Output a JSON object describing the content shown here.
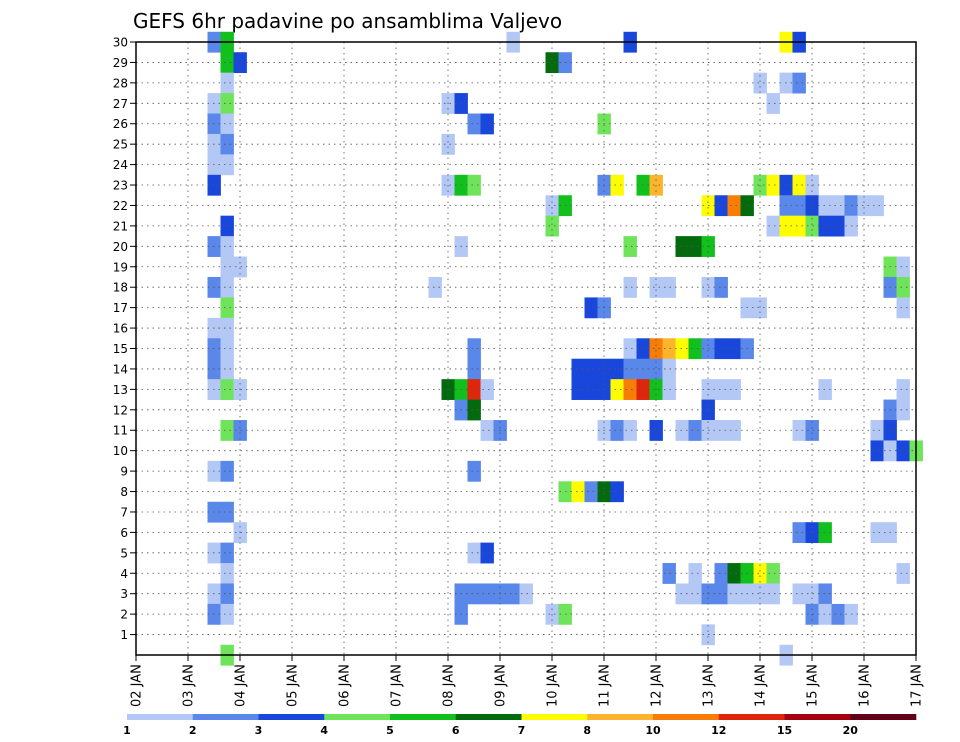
{
  "chart_data": {
    "type": "heatmap",
    "title": "GEFS 6hr padavine po ansamblima Valjevo",
    "xlabel": "",
    "ylabel": "",
    "x_ticks": [
      "02 JAN",
      "03 JAN",
      "04 JAN",
      "05 JAN",
      "06 JAN",
      "07 JAN",
      "08 JAN",
      "09 JAN",
      "10 JAN",
      "11 JAN",
      "12 JAN",
      "13 JAN",
      "14 JAN",
      "15 JAN",
      "16 JAN",
      "17 JAN"
    ],
    "y_ticks": [
      1,
      2,
      3,
      4,
      5,
      6,
      7,
      8,
      9,
      10,
      11,
      12,
      13,
      14,
      15,
      16,
      17,
      18,
      19,
      20,
      21,
      22,
      23,
      24,
      25,
      26,
      27,
      28,
      29,
      30
    ],
    "ylim": [
      0,
      30
    ],
    "grid": true,
    "colorbar": {
      "labels": [
        "1",
        "2",
        "3",
        "4",
        "5",
        "6",
        "7",
        "8",
        "10",
        "12",
        "15",
        "20"
      ],
      "colors": [
        "#b4c8f5",
        "#5a87ea",
        "#1a47db",
        "#6fe45a",
        "#11c01c",
        "#036b0e",
        "#fdfc02",
        "#fcb42d",
        "#f77d07",
        "#e0250d",
        "#a5000f",
        "#620018"
      ]
    },
    "cells": [
      [
        30,
        1.5,
        2
      ],
      [
        30,
        1.75,
        5
      ],
      [
        30,
        7.25,
        1
      ],
      [
        30,
        9.5,
        3
      ],
      [
        30,
        12.5,
        7
      ],
      [
        30,
        12.75,
        3
      ],
      [
        29,
        1.75,
        5
      ],
      [
        29,
        2.0,
        3
      ],
      [
        29,
        8.0,
        6
      ],
      [
        29,
        8.25,
        2
      ],
      [
        28,
        1.75,
        1
      ],
      [
        28,
        12.0,
        1
      ],
      [
        28,
        12.5,
        1
      ],
      [
        28,
        12.75,
        2
      ],
      [
        27,
        1.5,
        1
      ],
      [
        27,
        1.75,
        4
      ],
      [
        27,
        6.0,
        1
      ],
      [
        27,
        6.25,
        3
      ],
      [
        27,
        12.25,
        1
      ],
      [
        26,
        1.5,
        2
      ],
      [
        26,
        1.75,
        1
      ],
      [
        26,
        6.5,
        2
      ],
      [
        26,
        6.75,
        3
      ],
      [
        26,
        9.0,
        4
      ],
      [
        25,
        1.5,
        1
      ],
      [
        25,
        1.75,
        2
      ],
      [
        25,
        6.0,
        1
      ],
      [
        24,
        1.5,
        1
      ],
      [
        24,
        1.75,
        1
      ],
      [
        23,
        1.5,
        3
      ],
      [
        23,
        6.0,
        1
      ],
      [
        23,
        6.25,
        5
      ],
      [
        23,
        6.5,
        4
      ],
      [
        23,
        9.0,
        2
      ],
      [
        23,
        9.25,
        7
      ],
      [
        23,
        9.75,
        5
      ],
      [
        23,
        10.0,
        8
      ],
      [
        23,
        12.0,
        4
      ],
      [
        23,
        12.25,
        7
      ],
      [
        23,
        12.5,
        3
      ],
      [
        23,
        12.75,
        7
      ],
      [
        23,
        13.0,
        1
      ],
      [
        22,
        8.0,
        1
      ],
      [
        22,
        8.25,
        5
      ],
      [
        22,
        11.0,
        7
      ],
      [
        22,
        11.25,
        3
      ],
      [
        22,
        11.5,
        9
      ],
      [
        22,
        11.75,
        6
      ],
      [
        22,
        12.5,
        2
      ],
      [
        22,
        12.75,
        2
      ],
      [
        22,
        13.0,
        3
      ],
      [
        22,
        13.25,
        1
      ],
      [
        22,
        13.5,
        1
      ],
      [
        22,
        13.75,
        2
      ],
      [
        22,
        14.0,
        1
      ],
      [
        22,
        14.25,
        1
      ],
      [
        21,
        1.75,
        3
      ],
      [
        21,
        8.0,
        4
      ],
      [
        21,
        12.25,
        1
      ],
      [
        21,
        12.5,
        7
      ],
      [
        21,
        12.75,
        7
      ],
      [
        21,
        13.0,
        4
      ],
      [
        21,
        13.25,
        3
      ],
      [
        21,
        13.5,
        3
      ],
      [
        21,
        13.75,
        1
      ],
      [
        20,
        1.5,
        2
      ],
      [
        20,
        1.75,
        1
      ],
      [
        20,
        6.25,
        1
      ],
      [
        20,
        9.5,
        4
      ],
      [
        20,
        10.5,
        6
      ],
      [
        20,
        10.75,
        6
      ],
      [
        20,
        11.0,
        5
      ],
      [
        19,
        1.75,
        1
      ],
      [
        19,
        2.0,
        1
      ],
      [
        19,
        14.5,
        4
      ],
      [
        19,
        14.75,
        1
      ],
      [
        18,
        1.5,
        2
      ],
      [
        18,
        1.75,
        1
      ],
      [
        18,
        5.75,
        1
      ],
      [
        18,
        9.5,
        1
      ],
      [
        18,
        10.0,
        1
      ],
      [
        18,
        10.25,
        1
      ],
      [
        18,
        11.0,
        1
      ],
      [
        18,
        11.25,
        2
      ],
      [
        18,
        14.5,
        2
      ],
      [
        18,
        14.75,
        4
      ],
      [
        17,
        1.75,
        4
      ],
      [
        17,
        8.75,
        3
      ],
      [
        17,
        9.0,
        2
      ],
      [
        17,
        11.75,
        1
      ],
      [
        17,
        12.0,
        1
      ],
      [
        17,
        14.75,
        1
      ],
      [
        16,
        1.5,
        1
      ],
      [
        16,
        1.75,
        1
      ],
      [
        15,
        1.5,
        2
      ],
      [
        15,
        1.75,
        1
      ],
      [
        15,
        6.5,
        2
      ],
      [
        15,
        9.5,
        1
      ],
      [
        15,
        9.75,
        3
      ],
      [
        15,
        10.0,
        9
      ],
      [
        15,
        10.25,
        8
      ],
      [
        15,
        10.5,
        7
      ],
      [
        15,
        10.75,
        5
      ],
      [
        15,
        11.0,
        2
      ],
      [
        15,
        11.25,
        3
      ],
      [
        15,
        11.5,
        3
      ],
      [
        15,
        11.75,
        2
      ],
      [
        14,
        1.5,
        2
      ],
      [
        14,
        1.75,
        1
      ],
      [
        14,
        6.5,
        2
      ],
      [
        14,
        8.5,
        3
      ],
      [
        14,
        8.75,
        3
      ],
      [
        14,
        9.0,
        3
      ],
      [
        14,
        9.25,
        3
      ],
      [
        14,
        9.5,
        2
      ],
      [
        14,
        9.75,
        2
      ],
      [
        14,
        10.0,
        2
      ],
      [
        14,
        10.25,
        1
      ],
      [
        13,
        1.5,
        1
      ],
      [
        13,
        1.75,
        4
      ],
      [
        13,
        2.0,
        1
      ],
      [
        13,
        6.0,
        6
      ],
      [
        13,
        6.25,
        5
      ],
      [
        13,
        6.5,
        10
      ],
      [
        13,
        6.75,
        1
      ],
      [
        13,
        8.5,
        3
      ],
      [
        13,
        8.75,
        3
      ],
      [
        13,
        9.0,
        3
      ],
      [
        13,
        9.25,
        7
      ],
      [
        13,
        9.5,
        9
      ],
      [
        13,
        9.75,
        10
      ],
      [
        13,
        10.0,
        5
      ],
      [
        13,
        10.25,
        1
      ],
      [
        13,
        11.0,
        1
      ],
      [
        13,
        11.25,
        1
      ],
      [
        13,
        11.5,
        1
      ],
      [
        13,
        13.25,
        1
      ],
      [
        13,
        14.75,
        1
      ],
      [
        12,
        6.25,
        2
      ],
      [
        12,
        6.5,
        6
      ],
      [
        12,
        11.0,
        3
      ],
      [
        12,
        14.5,
        2
      ],
      [
        12,
        14.75,
        1
      ],
      [
        11,
        1.75,
        4
      ],
      [
        11,
        2.0,
        2
      ],
      [
        11,
        6.75,
        1
      ],
      [
        11,
        7.0,
        2
      ],
      [
        11,
        9.0,
        1
      ],
      [
        11,
        9.25,
        2
      ],
      [
        11,
        9.5,
        1
      ],
      [
        11,
        10.0,
        3
      ],
      [
        11,
        10.5,
        1
      ],
      [
        11,
        10.75,
        2
      ],
      [
        11,
        11.0,
        1
      ],
      [
        11,
        11.25,
        1
      ],
      [
        11,
        11.5,
        1
      ],
      [
        11,
        12.75,
        1
      ],
      [
        11,
        13.0,
        2
      ],
      [
        11,
        14.25,
        1
      ],
      [
        11,
        14.5,
        3
      ],
      [
        10,
        14.25,
        3
      ],
      [
        10,
        14.5,
        1
      ],
      [
        10,
        14.75,
        3
      ],
      [
        10,
        15.0,
        4
      ],
      [
        9,
        1.5,
        1
      ],
      [
        9,
        1.75,
        2
      ],
      [
        9,
        6.5,
        2
      ],
      [
        8,
        8.25,
        4
      ],
      [
        8,
        8.5,
        7
      ],
      [
        8,
        8.75,
        2
      ],
      [
        8,
        9.0,
        6
      ],
      [
        8,
        9.25,
        3
      ],
      [
        7,
        1.5,
        2
      ],
      [
        7,
        1.75,
        2
      ],
      [
        6,
        2.0,
        1
      ],
      [
        6,
        12.75,
        2
      ],
      [
        6,
        13.0,
        3
      ],
      [
        6,
        13.25,
        5
      ],
      [
        6,
        14.25,
        1
      ],
      [
        6,
        14.5,
        1
      ],
      [
        5,
        1.5,
        1
      ],
      [
        5,
        1.75,
        2
      ],
      [
        5,
        6.5,
        1
      ],
      [
        5,
        6.75,
        3
      ],
      [
        4,
        1.75,
        1
      ],
      [
        4,
        10.25,
        2
      ],
      [
        4,
        10.75,
        1
      ],
      [
        4,
        11.25,
        2
      ],
      [
        4,
        11.5,
        6
      ],
      [
        4,
        11.75,
        5
      ],
      [
        4,
        12.0,
        7
      ],
      [
        4,
        12.25,
        4
      ],
      [
        4,
        14.75,
        1
      ],
      [
        3,
        1.5,
        1
      ],
      [
        3,
        1.75,
        2
      ],
      [
        3,
        6.25,
        2
      ],
      [
        3,
        6.5,
        2
      ],
      [
        3,
        6.75,
        2
      ],
      [
        3,
        7.0,
        2
      ],
      [
        3,
        7.25,
        2
      ],
      [
        3,
        7.5,
        1
      ],
      [
        3,
        10.5,
        1
      ],
      [
        3,
        10.75,
        1
      ],
      [
        3,
        11.0,
        2
      ],
      [
        3,
        11.25,
        2
      ],
      [
        3,
        11.5,
        1
      ],
      [
        3,
        11.75,
        1
      ],
      [
        3,
        12.0,
        1
      ],
      [
        3,
        12.25,
        1
      ],
      [
        3,
        12.75,
        1
      ],
      [
        3,
        13.0,
        1
      ],
      [
        3,
        13.25,
        2
      ],
      [
        2,
        1.5,
        2
      ],
      [
        2,
        1.75,
        1
      ],
      [
        2,
        6.25,
        2
      ],
      [
        2,
        8.0,
        1
      ],
      [
        2,
        8.25,
        4
      ],
      [
        2,
        13.0,
        2
      ],
      [
        2,
        13.25,
        1
      ],
      [
        2,
        13.5,
        2
      ],
      [
        2,
        13.75,
        1
      ],
      [
        1,
        11.0,
        1
      ],
      [
        0,
        1.75,
        4
      ],
      [
        0,
        12.5,
        1
      ]
    ]
  }
}
